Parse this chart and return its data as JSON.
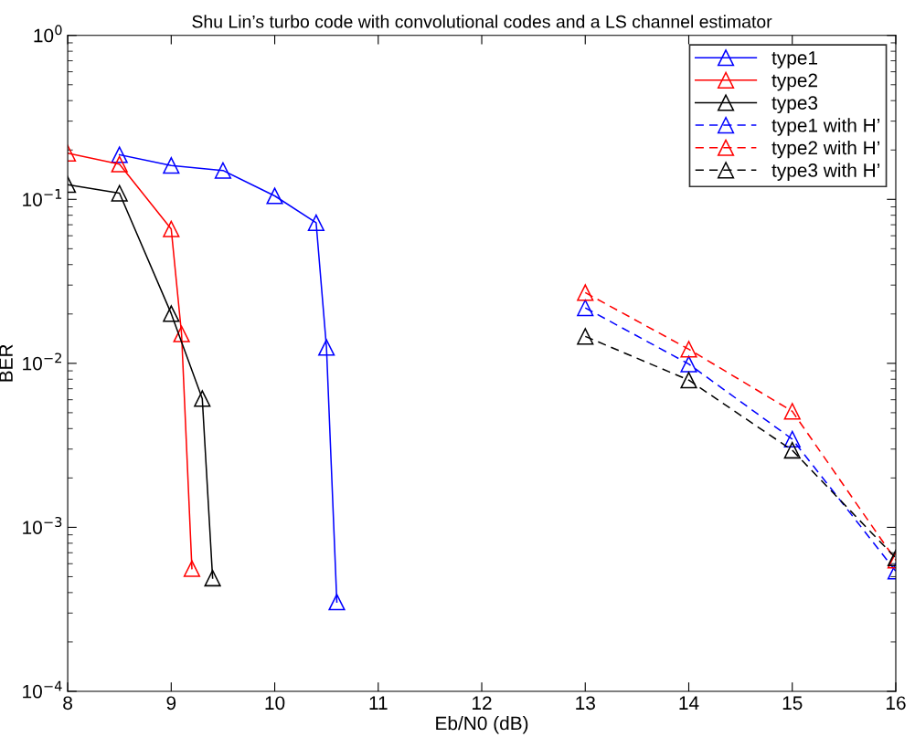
{
  "chart_data": {
    "type": "line",
    "title": "Shu Lin’s turbo code with convolutional codes and a LS channel estimator",
    "xlabel": "Eb/N0 (dB)",
    "ylabel": "BER",
    "log": "y",
    "xlim": [
      8,
      16
    ],
    "ylim": [
      0.0001,
      1
    ],
    "xticks": [
      8,
      9,
      10,
      11,
      12,
      13,
      14,
      15,
      16
    ],
    "yticks": [
      {
        "value": 0.0001,
        "label": "10$^{−4}$"
      },
      {
        "value": 0.001,
        "label": "10$^{−3}$"
      },
      {
        "value": 0.01,
        "label": "10$^{−2}$"
      },
      {
        "value": 0.1,
        "label": "10$^{−1}$"
      },
      {
        "value": 1,
        "label": "10$^{0}$"
      }
    ],
    "grid": false,
    "legend": "top right",
    "marker": "triangle",
    "series": [
      {
        "name": "type1",
        "color": "#0000ff",
        "line_style": "solid",
        "x": [
          8.5,
          9,
          9.5,
          10,
          10.4,
          10.5,
          10.6
        ],
        "values": [
          0.187,
          0.161,
          0.15,
          0.105,
          0.072,
          0.0125,
          0.00035
        ]
      },
      {
        "name": "type2",
        "color": "#ff0000",
        "line_style": "solid",
        "x": [
          8,
          8.5,
          9,
          9.1,
          9.2
        ],
        "values": [
          0.191,
          0.164,
          0.066,
          0.0151,
          0.00056
        ]
      },
      {
        "name": "type3",
        "color": "#000000",
        "line_style": "solid",
        "x": [
          8,
          8.5,
          9,
          9.3,
          9.4
        ],
        "values": [
          0.123,
          0.109,
          0.0201,
          0.0061,
          0.00049
        ]
      },
      {
        "name": "type1 with H’",
        "color": "#0000ff",
        "line_style": "dashed",
        "x": [
          13,
          14,
          15,
          16
        ],
        "values": [
          0.0218,
          0.0099,
          0.00345,
          0.00054
        ]
      },
      {
        "name": "type2 with H’",
        "color": "#ff0000",
        "line_style": "dashed",
        "x": [
          13,
          14,
          15,
          16
        ],
        "values": [
          0.027,
          0.0122,
          0.0051,
          0.00063
        ]
      },
      {
        "name": "type3 with H’",
        "color": "#000000",
        "line_style": "dashed",
        "x": [
          13,
          14,
          15,
          16
        ],
        "values": [
          0.0146,
          0.0079,
          0.00295,
          0.00065
        ]
      }
    ]
  }
}
